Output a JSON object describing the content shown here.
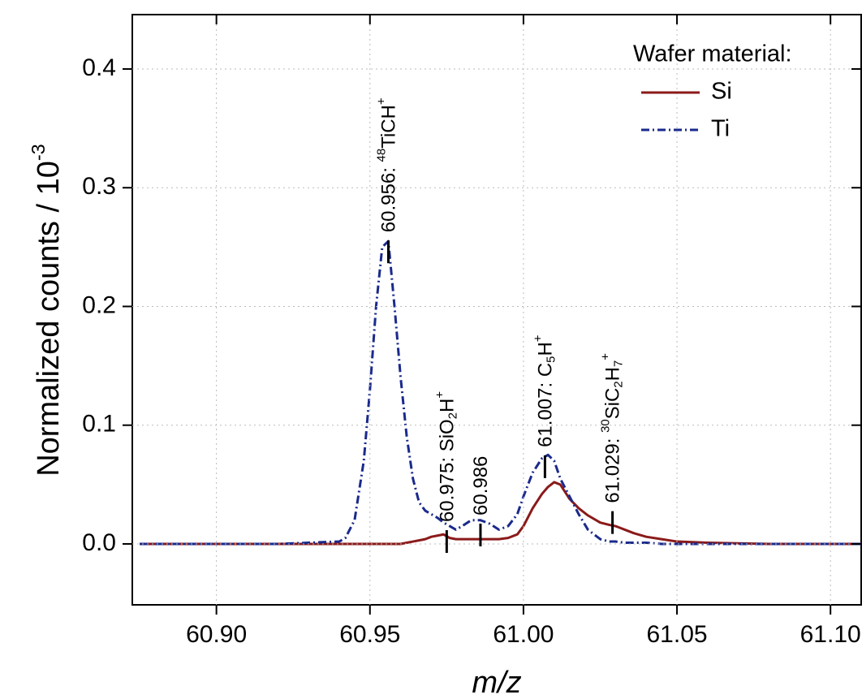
{
  "chart_data": {
    "type": "line",
    "x_label": "m/z",
    "y_label": [
      {
        "text": "Normalized counts / 10"
      },
      {
        "text": "-3",
        "sup": true
      }
    ],
    "x": [
      60.875,
      60.9,
      60.92,
      60.94,
      60.942,
      60.945,
      60.948,
      60.95,
      60.952,
      60.954,
      60.956,
      60.958,
      60.96,
      60.962,
      60.964,
      60.966,
      60.968,
      60.97,
      60.972,
      60.974,
      60.976,
      60.978,
      60.98,
      60.983,
      60.986,
      60.989,
      60.992,
      60.995,
      60.998,
      61.0,
      61.003,
      61.006,
      61.008,
      61.01,
      61.012,
      61.015,
      61.018,
      61.021,
      61.025,
      61.028,
      61.03,
      61.033,
      61.036,
      61.04,
      61.045,
      61.05,
      61.06,
      61.08,
      61.11
    ],
    "series": [
      {
        "name": "Si",
        "color": "#8b1a1a",
        "dash": "solid",
        "values": [
          0,
          0,
          0,
          0,
          0,
          0,
          0,
          0,
          0,
          0,
          0,
          0,
          0,
          0.001,
          0.002,
          0.003,
          0.004,
          0.006,
          0.007,
          0.008,
          0.005,
          0.004,
          0.004,
          0.004,
          0.004,
          0.004,
          0.004,
          0.005,
          0.008,
          0.015,
          0.03,
          0.042,
          0.048,
          0.052,
          0.05,
          0.038,
          0.03,
          0.024,
          0.018,
          0.016,
          0.015,
          0.012,
          0.009,
          0.006,
          0.004,
          0.002,
          0.001,
          0,
          0
        ]
      },
      {
        "name": "Ti",
        "color": "#1a2a8c",
        "dash": "dash-dot",
        "values": [
          0,
          0,
          0,
          0.002,
          0.005,
          0.02,
          0.07,
          0.13,
          0.2,
          0.25,
          0.255,
          0.2,
          0.14,
          0.09,
          0.055,
          0.035,
          0.028,
          0.025,
          0.022,
          0.018,
          0.015,
          0.012,
          0.015,
          0.02,
          0.02,
          0.017,
          0.012,
          0.015,
          0.025,
          0.04,
          0.06,
          0.072,
          0.075,
          0.07,
          0.055,
          0.04,
          0.025,
          0.012,
          0.004,
          0.002,
          0.002,
          0.001,
          0.001,
          0.001,
          0,
          0,
          0,
          0,
          0
        ]
      }
    ],
    "xlim": [
      60.8726,
      61.11
    ],
    "ylim": [
      -0.0513,
      0.4458
    ],
    "xticks": [
      {
        "value": 60.9,
        "label": "60.90"
      },
      {
        "value": 60.95,
        "label": "60.95"
      },
      {
        "value": 61.0,
        "label": "61.00"
      },
      {
        "value": 61.05,
        "label": "61.05"
      },
      {
        "value": 61.1,
        "label": "61.10"
      }
    ],
    "yticks": [
      {
        "value": 0,
        "label": "0.0"
      },
      0.1,
      0.2,
      0.3,
      0.4
    ],
    "grid": true,
    "legend_title": "Wafer material:",
    "legend": "upper right",
    "annotations": [
      {
        "x": 60.956,
        "y": 0.246,
        "label": [
          {
            "text": "60.956: "
          },
          {
            "text": "48",
            "sup": true
          },
          {
            "text": "TiCH"
          },
          {
            "text": "+",
            "sup": true
          }
        ]
      },
      {
        "x": 60.975,
        "y": 0.002,
        "label": [
          {
            "text": "60.975: SiO"
          },
          {
            "text": "2",
            "sub": true
          },
          {
            "text": "H"
          },
          {
            "text": "+",
            "sup": true
          }
        ]
      },
      {
        "x": 60.986,
        "y": 0.0075,
        "label": [
          {
            "text": "60.986"
          }
        ]
      },
      {
        "x": 61.007,
        "y": 0.065,
        "label": [
          {
            "text": "61.007: C"
          },
          {
            "text": "5",
            "sub": true
          },
          {
            "text": "H"
          },
          {
            "text": "+",
            "sup": true
          }
        ]
      },
      {
        "x": 61.029,
        "y": 0.018,
        "label": [
          {
            "text": "61.029: "
          },
          {
            "text": "30",
            "sup": true
          },
          {
            "text": "SiC"
          },
          {
            "text": "2",
            "sub": true
          },
          {
            "text": "H"
          },
          {
            "text": "7",
            "sub": true
          },
          {
            "text": "+",
            "sup": true
          }
        ]
      }
    ]
  }
}
